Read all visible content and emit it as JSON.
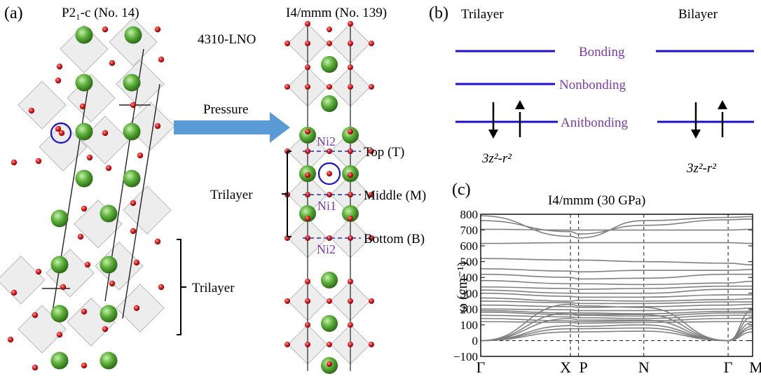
{
  "panel_a": {
    "label": "(a)",
    "left_title": "P2₁-c (No. 14)",
    "right_title": "I4/mmm (No. 139)",
    "compound": "4310-LNO",
    "arrow_label": "Pressure",
    "left_bracket_label": "Trilayer",
    "right_bracket_label": "Trilayer",
    "ni_labels": [
      "Ni2",
      "Ni1",
      "Ni2"
    ],
    "layer_labels": [
      "Top (T)",
      "Middle (M)",
      "Bottom (B)"
    ]
  },
  "panel_b": {
    "label": "(b)",
    "trilayer_title": "Trilayer",
    "bilayer_title": "Bilayer",
    "levels": [
      "Bonding",
      "Nonbonding",
      "Anitbonding"
    ],
    "orbital_left": "3z²-r²",
    "orbital_right": "3z²-r²"
  },
  "panel_c": {
    "label": "(c)",
    "chart_data": {
      "type": "line",
      "title": "I4/mmm (30 GPa)",
      "ylabel": "ω (cm⁻¹)",
      "ylim": [
        -100,
        800
      ],
      "yticks": [
        -100,
        0,
        100,
        200,
        300,
        400,
        500,
        600,
        700,
        800
      ],
      "xticks": [
        {
          "label": "Γ",
          "pos": 0
        },
        {
          "label": "X",
          "pos": 0.33
        },
        {
          "label": "P",
          "pos": 0.36
        },
        {
          "label": "N",
          "pos": 0.6
        },
        {
          "label": "Γ",
          "pos": 0.91
        },
        {
          "label": "M",
          "pos": 1.0
        }
      ],
      "zero_line": 0,
      "branches": [
        [
          [
            0,
            790
          ],
          [
            0.33,
            660
          ],
          [
            0.36,
            650
          ],
          [
            0.6,
            760
          ],
          [
            0.91,
            780
          ],
          [
            1,
            785
          ]
        ],
        [
          [
            0,
            760
          ],
          [
            0.33,
            690
          ],
          [
            0.36,
            675
          ],
          [
            0.6,
            730
          ],
          [
            0.91,
            765
          ],
          [
            1,
            770
          ]
        ],
        [
          [
            0,
            705
          ],
          [
            0.33,
            700
          ],
          [
            0.36,
            700
          ],
          [
            0.6,
            700
          ],
          [
            0.91,
            700
          ],
          [
            1,
            705
          ]
        ],
        [
          [
            0,
            615
          ],
          [
            0.33,
            620
          ],
          [
            0.36,
            620
          ],
          [
            0.6,
            620
          ],
          [
            0.91,
            620
          ],
          [
            1,
            615
          ]
        ],
        [
          [
            0,
            520
          ],
          [
            0.33,
            510
          ],
          [
            0.36,
            510
          ],
          [
            0.6,
            500
          ],
          [
            0.91,
            490
          ],
          [
            1,
            480
          ]
        ],
        [
          [
            0,
            455
          ],
          [
            0.33,
            440
          ],
          [
            0.36,
            435
          ],
          [
            0.6,
            445
          ],
          [
            0.91,
            445
          ],
          [
            1,
            450
          ]
        ],
        [
          [
            0,
            420
          ],
          [
            0.33,
            400
          ],
          [
            0.36,
            390
          ],
          [
            0.6,
            395
          ],
          [
            0.91,
            420
          ],
          [
            1,
            420
          ]
        ],
        [
          [
            0,
            380
          ],
          [
            0.33,
            360
          ],
          [
            0.36,
            360
          ],
          [
            0.6,
            355
          ],
          [
            0.91,
            365
          ],
          [
            1,
            375
          ]
        ],
        [
          [
            0,
            340
          ],
          [
            0.33,
            330
          ],
          [
            0.36,
            325
          ],
          [
            0.6,
            330
          ],
          [
            0.91,
            345
          ],
          [
            1,
            345
          ]
        ],
        [
          [
            0,
            320
          ],
          [
            0.33,
            300
          ],
          [
            0.36,
            300
          ],
          [
            0.6,
            300
          ],
          [
            0.91,
            325
          ],
          [
            1,
            325
          ]
        ],
        [
          [
            0,
            300
          ],
          [
            0.33,
            280
          ],
          [
            0.36,
            275
          ],
          [
            0.6,
            275
          ],
          [
            0.91,
            290
          ],
          [
            1,
            290
          ]
        ],
        [
          [
            0,
            270
          ],
          [
            0.33,
            250
          ],
          [
            0.36,
            255
          ],
          [
            0.6,
            250
          ],
          [
            0.91,
            260
          ],
          [
            1,
            265
          ]
        ],
        [
          [
            0,
            250
          ],
          [
            0.33,
            240
          ],
          [
            0.36,
            235
          ],
          [
            0.6,
            235
          ],
          [
            0.91,
            245
          ],
          [
            1,
            245
          ]
        ],
        [
          [
            0,
            225
          ],
          [
            0.33,
            215
          ],
          [
            0.36,
            210
          ],
          [
            0.6,
            215
          ],
          [
            0.91,
            225
          ],
          [
            1,
            230
          ]
        ],
        [
          [
            0,
            200
          ],
          [
            0.33,
            195
          ],
          [
            0.36,
            190
          ],
          [
            0.6,
            190
          ],
          [
            0.91,
            200
          ],
          [
            1,
            205
          ]
        ],
        [
          [
            0,
            190
          ],
          [
            0.33,
            175
          ],
          [
            0.36,
            175
          ],
          [
            0.6,
            170
          ],
          [
            0.91,
            185
          ],
          [
            1,
            185
          ]
        ],
        [
          [
            0,
            180
          ],
          [
            0.33,
            165
          ],
          [
            0.36,
            160
          ],
          [
            0.6,
            155
          ],
          [
            0.91,
            175
          ],
          [
            1,
            175
          ]
        ],
        [
          [
            0,
            160
          ],
          [
            0.33,
            150
          ],
          [
            0.36,
            145
          ],
          [
            0.6,
            140
          ],
          [
            0.91,
            160
          ],
          [
            1,
            160
          ]
        ],
        [
          [
            0,
            140
          ],
          [
            0.33,
            125
          ],
          [
            0.36,
            120
          ],
          [
            0.6,
            125
          ],
          [
            0.91,
            140
          ],
          [
            1,
            140
          ]
        ],
        [
          [
            0,
            120
          ],
          [
            0.33,
            115
          ],
          [
            0.36,
            110
          ],
          [
            0.6,
            115
          ],
          [
            0.91,
            120
          ],
          [
            1,
            120
          ]
        ],
        [
          [
            0,
            0
          ],
          [
            0.33,
            95
          ],
          [
            0.36,
            90
          ],
          [
            0.6,
            100
          ],
          [
            0.91,
            0
          ],
          [
            1,
            90
          ]
        ],
        [
          [
            0,
            0
          ],
          [
            0.33,
            75
          ],
          [
            0.36,
            75
          ],
          [
            0.6,
            80
          ],
          [
            0.91,
            0
          ],
          [
            1,
            75
          ]
        ],
        [
          [
            0,
            0
          ],
          [
            0.33,
            55
          ],
          [
            0.36,
            55
          ],
          [
            0.6,
            60
          ],
          [
            0.91,
            0
          ],
          [
            1,
            55
          ]
        ],
        [
          [
            0,
            0
          ],
          [
            0.33,
            140
          ],
          [
            0.36,
            130
          ],
          [
            0.6,
            130
          ],
          [
            0.91,
            0
          ],
          [
            1,
            115
          ]
        ],
        [
          [
            0,
            0
          ],
          [
            0.33,
            175
          ],
          [
            0.36,
            165
          ],
          [
            0.6,
            165
          ],
          [
            0.91,
            0
          ],
          [
            1,
            150
          ]
        ],
        [
          [
            0,
            0
          ],
          [
            0.33,
            230
          ],
          [
            0.36,
            220
          ],
          [
            0.6,
            210
          ],
          [
            0.91,
            0
          ],
          [
            1,
            195
          ]
        ]
      ]
    }
  },
  "colors": {
    "ni_level": "#1c10c8",
    "level_label": "#7c3aad",
    "la_atom": "#5cb13a",
    "o_atom": "#d81b1b",
    "arrow": "#5b9bd5",
    "phonon": "#808080",
    "dashed_guide": "#2a2aa0"
  }
}
